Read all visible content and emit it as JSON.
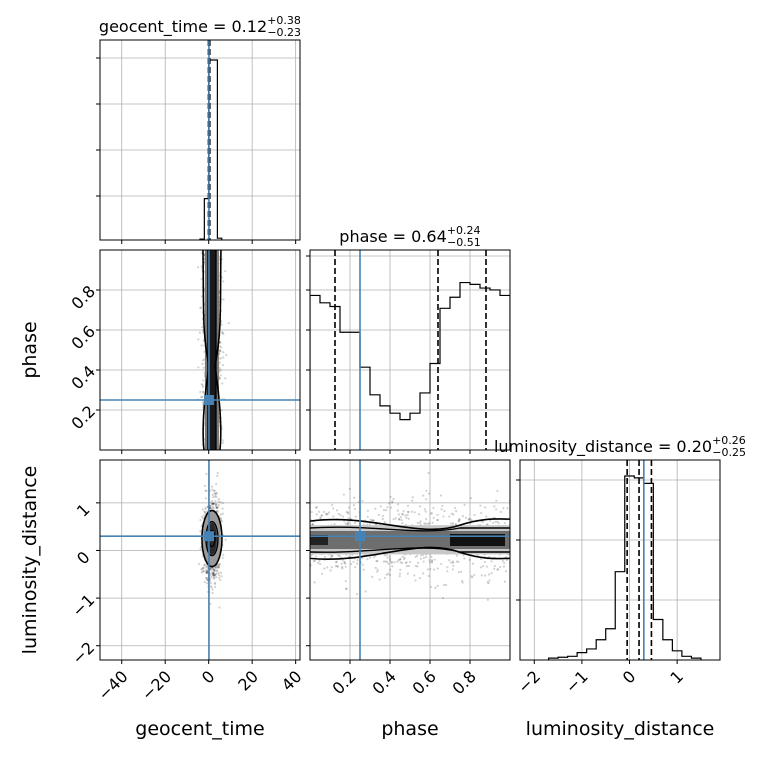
{
  "chart_data": {
    "type": "corner",
    "parameters": [
      "geocent_time",
      "phase",
      "luminosity_distance"
    ],
    "truth_color": "#4682b4",
    "truths": {
      "geocent_time": 0.12,
      "phase": 0.25,
      "luminosity_distance": 0.3
    },
    "axes": {
      "geocent_time": {
        "range": [
          -50,
          42
        ],
        "ticks": [
          -40,
          -20,
          0,
          20,
          40
        ],
        "tick_labels": [
          "−40",
          "−20",
          "0",
          "20",
          "40"
        ]
      },
      "phase": {
        "range": [
          0.0,
          1.0
        ],
        "ticks": [
          0.2,
          0.4,
          0.6,
          0.8
        ],
        "tick_labels": [
          "0.2",
          "0.4",
          "0.6",
          "0.8"
        ]
      },
      "luminosity_distance": {
        "range": [
          -2.3,
          1.9
        ],
        "ticks": [
          -2,
          -1,
          0,
          1
        ],
        "tick_labels": [
          "−2",
          "−1",
          "0",
          "1"
        ]
      }
    },
    "marginals": [
      {
        "param": "geocent_time",
        "title": {
          "main": "geocent_time = 0.12",
          "sup": "+0.38",
          "sub": "−0.23"
        },
        "quantiles": [
          -0.11,
          0.12,
          0.5
        ],
        "bins": [
          {
            "x0": -4,
            "x1": -2,
            "h": 0.005
          },
          {
            "x0": -2,
            "x1": 0,
            "h": 0.23
          },
          {
            "x0": 0,
            "x1": 2,
            "h": 1.0
          },
          {
            "x0": 2,
            "x1": 4,
            "h": 1.0
          },
          {
            "x0": 4,
            "x1": 6,
            "h": 0.01
          }
        ]
      },
      {
        "param": "phase",
        "title": {
          "main": "phase = 0.64",
          "sup": "+0.24",
          "sub": "−0.51"
        },
        "quantiles": [
          0.125,
          0.64,
          0.88
        ],
        "bins": [
          {
            "x0": 0.0,
            "x1": 0.05,
            "h": 0.84
          },
          {
            "x0": 0.05,
            "x1": 0.1,
            "h": 0.8
          },
          {
            "x0": 0.1,
            "x1": 0.15,
            "h": 0.78
          },
          {
            "x0": 0.15,
            "x1": 0.2,
            "h": 0.64
          },
          {
            "x0": 0.2,
            "x1": 0.25,
            "h": 0.64
          },
          {
            "x0": 0.25,
            "x1": 0.3,
            "h": 0.45
          },
          {
            "x0": 0.3,
            "x1": 0.35,
            "h": 0.3
          },
          {
            "x0": 0.35,
            "x1": 0.4,
            "h": 0.24
          },
          {
            "x0": 0.4,
            "x1": 0.45,
            "h": 0.2
          },
          {
            "x0": 0.45,
            "x1": 0.5,
            "h": 0.165
          },
          {
            "x0": 0.5,
            "x1": 0.55,
            "h": 0.2
          },
          {
            "x0": 0.55,
            "x1": 0.6,
            "h": 0.31
          },
          {
            "x0": 0.6,
            "x1": 0.65,
            "h": 0.47
          },
          {
            "x0": 0.65,
            "x1": 0.7,
            "h": 0.77
          },
          {
            "x0": 0.7,
            "x1": 0.75,
            "h": 0.83
          },
          {
            "x0": 0.75,
            "x1": 0.8,
            "h": 0.91
          },
          {
            "x0": 0.8,
            "x1": 0.85,
            "h": 0.9
          },
          {
            "x0": 0.85,
            "x1": 0.9,
            "h": 0.88
          },
          {
            "x0": 0.9,
            "x1": 0.95,
            "h": 0.87
          },
          {
            "x0": 0.95,
            "x1": 1.0,
            "h": 0.84
          }
        ]
      },
      {
        "param": "luminosity_distance",
        "title": {
          "main": "luminosity_distance = 0.20",
          "sup": "+0.26",
          "sub": "−0.25"
        },
        "quantiles": [
          -0.05,
          0.2,
          0.46
        ],
        "bins": [
          {
            "x0": -1.7,
            "x1": -1.5,
            "h": 0.01
          },
          {
            "x0": -1.5,
            "x1": -1.3,
            "h": 0.015
          },
          {
            "x0": -1.3,
            "x1": -1.1,
            "h": 0.02
          },
          {
            "x0": -1.1,
            "x1": -0.9,
            "h": 0.04
          },
          {
            "x0": -0.9,
            "x1": -0.7,
            "h": 0.06
          },
          {
            "x0": -0.7,
            "x1": -0.5,
            "h": 0.11
          },
          {
            "x0": -0.5,
            "x1": -0.3,
            "h": 0.17
          },
          {
            "x0": -0.3,
            "x1": -0.1,
            "h": 0.48
          },
          {
            "x0": -0.1,
            "x1": 0.1,
            "h": 1.0
          },
          {
            "x0": 0.1,
            "x1": 0.3,
            "h": 0.99
          },
          {
            "x0": 0.3,
            "x1": 0.5,
            "h": 0.96
          },
          {
            "x0": 0.5,
            "x1": 0.7,
            "h": 0.22
          },
          {
            "x0": 0.7,
            "x1": 0.9,
            "h": 0.11
          },
          {
            "x0": 0.9,
            "x1": 1.1,
            "h": 0.05
          },
          {
            "x0": 1.1,
            "x1": 1.3,
            "h": 0.02
          },
          {
            "x0": 1.3,
            "x1": 1.5,
            "h": 0.01
          }
        ]
      }
    ],
    "pairs": [
      {
        "x": "geocent_time",
        "y": "phase"
      },
      {
        "x": "geocent_time",
        "y": "luminosity_distance"
      },
      {
        "x": "phase",
        "y": "luminosity_distance"
      }
    ],
    "axis_labels": {
      "geocent_time": "geocent_time",
      "phase": "phase",
      "luminosity_distance": "luminosity_distance"
    },
    "grid": true
  }
}
